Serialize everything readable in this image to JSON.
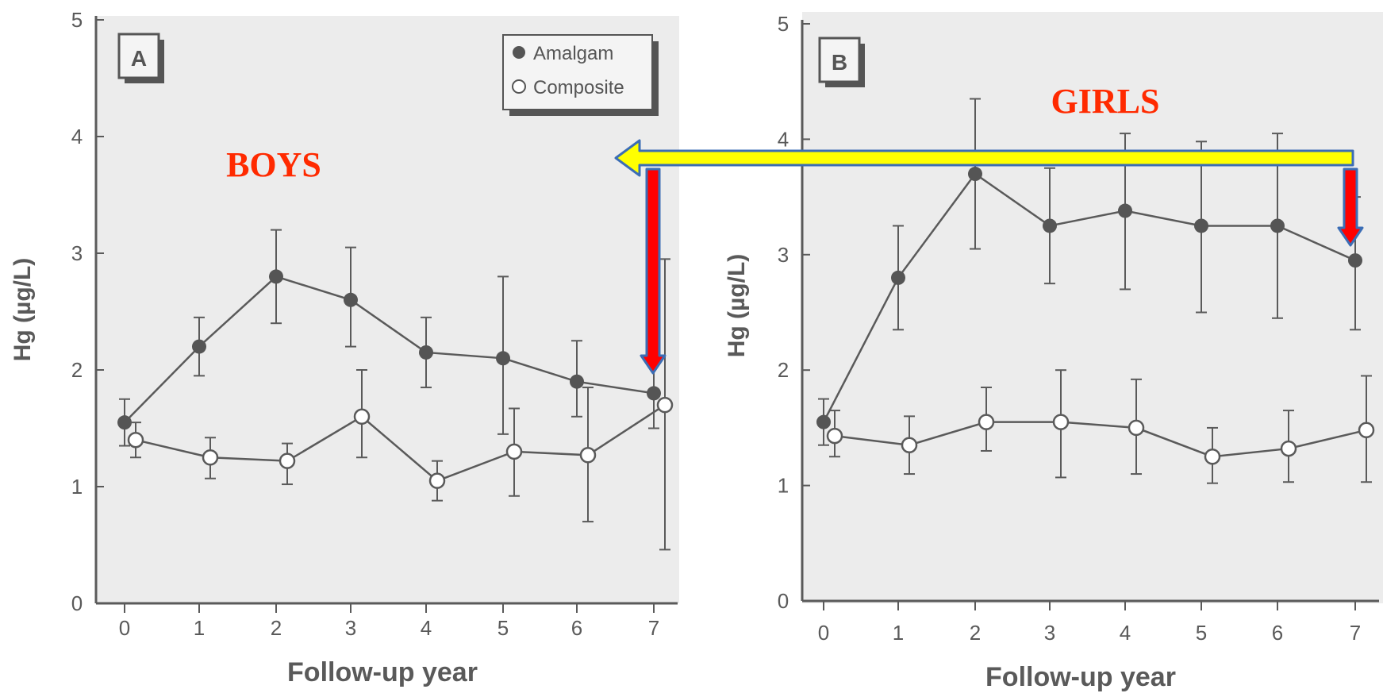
{
  "chart_data": [
    {
      "type": "line",
      "panel_label": "A",
      "annotation": "BOYS",
      "xlabel": "Follow-up year",
      "ylabel": "Hg (µg/L)",
      "x": [
        0,
        1,
        2,
        3,
        4,
        5,
        6,
        7
      ],
      "ylim": [
        0,
        5
      ],
      "xticks": [
        "0",
        "1",
        "2",
        "3",
        "4",
        "5",
        "6",
        "7"
      ],
      "yticks": [
        "0",
        "1",
        "2",
        "3",
        "4",
        "5"
      ],
      "legend": {
        "position": "top-right",
        "entries": [
          "Amalgam",
          "Composite"
        ]
      },
      "series": [
        {
          "name": "Amalgam",
          "marker": "filled",
          "values": [
            1.55,
            2.2,
            2.8,
            2.6,
            2.15,
            2.1,
            1.9,
            1.8
          ],
          "err_low": [
            1.35,
            1.95,
            2.4,
            2.2,
            1.85,
            1.45,
            1.6,
            1.5
          ],
          "err_high": [
            1.75,
            2.45,
            3.2,
            3.05,
            2.45,
            2.8,
            2.25,
            2.95
          ]
        },
        {
          "name": "Composite",
          "marker": "open",
          "values": [
            1.4,
            1.25,
            1.22,
            1.6,
            1.05,
            1.3,
            1.27,
            1.7
          ],
          "err_low": [
            1.25,
            1.07,
            1.02,
            1.25,
            0.88,
            0.92,
            0.7,
            0.46
          ],
          "err_high": [
            1.55,
            1.42,
            1.37,
            2.0,
            1.22,
            1.67,
            1.85,
            2.95
          ]
        }
      ]
    },
    {
      "type": "line",
      "panel_label": "B",
      "annotation": "GIRLS",
      "xlabel": "Follow-up year",
      "ylabel": "Hg (µg/L)",
      "x": [
        0,
        1,
        2,
        3,
        4,
        5,
        6,
        7
      ],
      "ylim": [
        0,
        5
      ],
      "xticks": [
        "0",
        "1",
        "2",
        "3",
        "4",
        "5",
        "6",
        "7"
      ],
      "yticks": [
        "0",
        "1",
        "2",
        "3",
        "4",
        "5"
      ],
      "series": [
        {
          "name": "Amalgam",
          "marker": "filled",
          "values": [
            1.55,
            2.8,
            3.7,
            3.25,
            3.38,
            3.25,
            3.25,
            2.95
          ],
          "err_low": [
            1.35,
            2.35,
            3.05,
            2.75,
            2.7,
            2.5,
            2.45,
            2.35
          ],
          "err_high": [
            1.75,
            3.25,
            4.35,
            3.75,
            4.05,
            3.98,
            4.05,
            3.5
          ]
        },
        {
          "name": "Composite",
          "marker": "open",
          "values": [
            1.43,
            1.35,
            1.55,
            1.55,
            1.5,
            1.25,
            1.32,
            1.48
          ],
          "err_low": [
            1.25,
            1.1,
            1.3,
            1.07,
            1.1,
            1.02,
            1.03,
            1.03
          ],
          "err_high": [
            1.65,
            1.6,
            1.85,
            2.0,
            1.92,
            1.5,
            1.65,
            1.95
          ]
        }
      ]
    }
  ],
  "colors": {
    "plot_bg": "#ececec",
    "ink": "#5a5a5a",
    "annotation_text": "#ff2a00",
    "arrow_yellow": "#ffff00",
    "arrow_red": "#ff0000",
    "arrow_outline": "#3b6db5"
  }
}
